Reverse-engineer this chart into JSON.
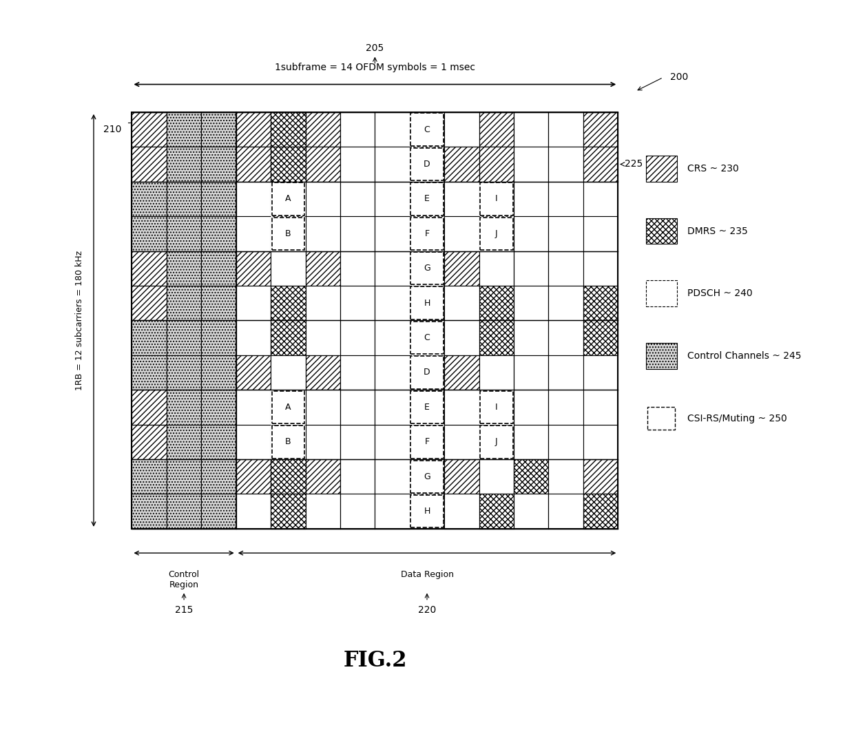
{
  "grid_cols": 14,
  "grid_rows": 12,
  "control_cols": 3,
  "fig_title": "FIG.2",
  "subframe_label": "1subframe = 14 OFDM symbols = 1 msec",
  "rb_label": "1RB = 12 subcarriers = 180 kHz",
  "ref_200": "200",
  "ref_205": "205",
  "ref_210": "210",
  "ref_215": "215",
  "ref_220": "220",
  "ref_225": "225",
  "ref_230": "230",
  "ref_235": "235",
  "ref_240": "240",
  "ref_245": "245",
  "ref_250": "250",
  "legend_labels": [
    "CRS ~ 230",
    "DMRS ~ 235",
    "PDSCH ~ 240",
    "Control Channels ~ 245",
    "CSI-RS/Muting ~ 250"
  ],
  "control_region_label": "Control\nRegion",
  "data_region_label": "Data Region",
  "background": "#ffffff",
  "crs_color": "#cccccc",
  "dmrs_color": "#aaaaaa",
  "ctrl_color": "#dddddd",
  "pdsch_color": "#ffffff"
}
